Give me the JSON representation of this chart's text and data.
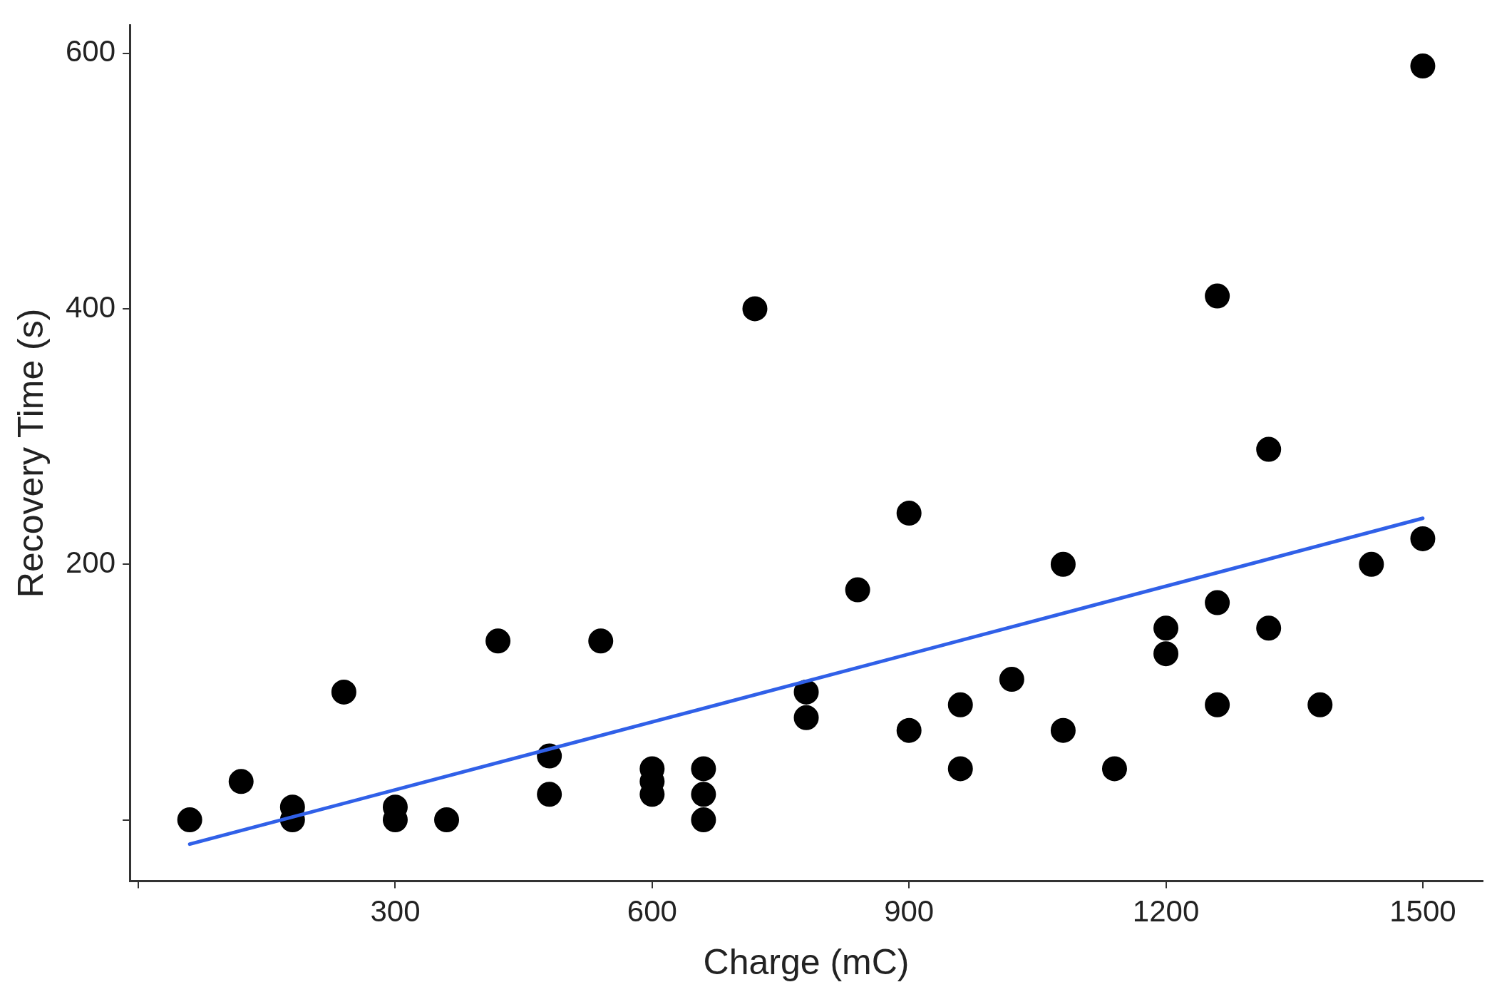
{
  "chart_data": {
    "type": "scatter",
    "xlabel": "Charge (mC)",
    "ylabel": "Recovery Time (s)",
    "xlim": [
      -10,
      1570
    ],
    "ylim": [
      -48,
      622
    ],
    "xticks": [
      {
        "value": 0,
        "label": null
      },
      300,
      600,
      900,
      1200,
      1500
    ],
    "yticks": [
      {
        "value": 0,
        "label": null
      },
      200,
      400,
      600
    ],
    "grid": false,
    "legend": false,
    "marker": "circle",
    "series": [
      {
        "color": "#000000",
        "x": [
          60,
          120,
          180,
          180,
          240,
          300,
          300,
          360,
          420,
          480,
          480,
          540,
          600,
          600,
          600,
          660,
          660,
          660,
          720,
          780,
          780,
          840,
          900,
          900,
          960,
          960,
          1020,
          1080,
          1080,
          1140,
          1200,
          1200,
          1260,
          1260,
          1260,
          1320,
          1320,
          1380,
          1440,
          1500,
          1500
        ],
        "values": [
          0,
          30,
          10,
          0,
          100,
          10,
          0,
          0,
          140,
          50,
          20,
          140,
          40,
          30,
          20,
          40,
          20,
          0,
          400,
          100,
          80,
          180,
          240,
          70,
          90,
          40,
          110,
          200,
          70,
          40,
          150,
          130,
          410,
          170,
          90,
          290,
          150,
          90,
          200,
          590,
          220
        ]
      },
      {
        "type": "line",
        "color": "#3060e8",
        "marker": "none",
        "line_style": "solid",
        "x": [
          60,
          1500
        ],
        "values": [
          -19,
          236
        ]
      }
    ]
  }
}
